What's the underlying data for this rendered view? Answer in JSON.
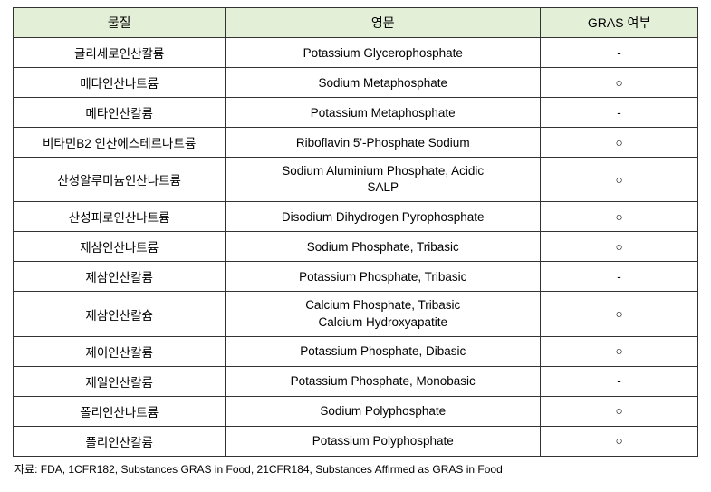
{
  "table": {
    "header_bg": "#e3efd7",
    "border_color": "#333333",
    "columns": [
      {
        "key": "substance",
        "label": "물질"
      },
      {
        "key": "english",
        "label": "영문"
      },
      {
        "key": "gras",
        "label": "GRAS 여부"
      }
    ],
    "rows": [
      {
        "substance": "글리세로인산칼륨",
        "english": "Potassium Glycerophosphate",
        "gras": "-"
      },
      {
        "substance": "메타인산나트륨",
        "english": "Sodium Metaphosphate",
        "gras": "○"
      },
      {
        "substance": "메타인산칼륨",
        "english": "Potassium Metaphosphate",
        "gras": "-"
      },
      {
        "substance": "비타민B2 인산에스테르나트륨",
        "english": "Riboflavin 5'-Phosphate Sodium",
        "gras": "○"
      },
      {
        "substance": "산성알루미늄인산나트륨",
        "english": "Sodium Aluminium Phosphate, Acidic\nSALP",
        "gras": "○"
      },
      {
        "substance": "산성피로인산나트륨",
        "english": "Disodium Dihydrogen Pyrophosphate",
        "gras": "○"
      },
      {
        "substance": "제삼인산나트륨",
        "english": "Sodium Phosphate, Tribasic",
        "gras": "○"
      },
      {
        "substance": "제삼인산칼륨",
        "english": "Potassium Phosphate, Tribasic",
        "gras": "-"
      },
      {
        "substance": "제삼인산칼슘",
        "english": "Calcium Phosphate, Tribasic\nCalcium Hydroxyapatite",
        "gras": "○"
      },
      {
        "substance": "제이인산칼륨",
        "english": "Potassium Phosphate, Dibasic",
        "gras": "○"
      },
      {
        "substance": "제일인산칼륨",
        "english": "Potassium Phosphate, Monobasic",
        "gras": "-"
      },
      {
        "substance": "폴리인산나트륨",
        "english": "Sodium Polyphosphate",
        "gras": "○"
      },
      {
        "substance": "폴리인산칼륨",
        "english": "Potassium Polyphosphate",
        "gras": "○"
      }
    ]
  },
  "source_note": "자료: FDA, 1CFR182, Substances GRAS in Food, 21CFR184, Substances Affirmed as GRAS in Food"
}
